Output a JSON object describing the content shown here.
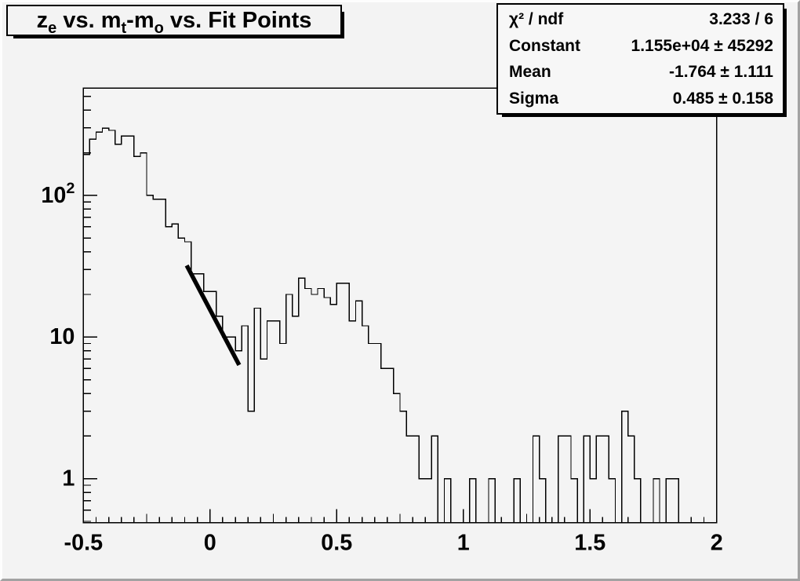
{
  "title": {
    "plain": "z_e vs. m_t-m_o vs. Fit Points",
    "parts": [
      {
        "t": "z"
      },
      {
        "sub": "e"
      },
      {
        "t": " vs. m"
      },
      {
        "sub": "t"
      },
      {
        "t": "-m"
      },
      {
        "sub": "o"
      },
      {
        "t": " vs. Fit Points"
      }
    ]
  },
  "stats": {
    "rows": [
      {
        "label": "χ² / ndf",
        "value": "3.233 / 6"
      },
      {
        "label": "Constant",
        "value": "1.155e+04 ± 45292"
      },
      {
        "label": "Mean",
        "value": "-1.764 ± 1.111"
      },
      {
        "label": "Sigma",
        "value": "0.485 ± 0.158"
      }
    ]
  },
  "chart_data": {
    "type": "bar",
    "subtype": "step-histogram",
    "title": "z_e vs. m_t-m_o vs. Fit Points",
    "xlabel": "",
    "ylabel": "",
    "grid": false,
    "legend_position": "top-right",
    "x_range": [
      -0.5,
      2
    ],
    "y_scale": "log",
    "y_range": [
      0.49,
      573
    ],
    "bin_start": -0.5,
    "bin_width": 0.025,
    "n_bins": 100,
    "values": [
      195,
      250,
      280,
      298,
      288,
      230,
      262,
      262,
      188,
      200,
      100,
      94,
      94,
      60,
      63,
      50,
      47,
      28,
      28,
      21,
      21,
      14,
      10,
      10,
      8,
      12,
      3,
      16,
      7,
      13,
      13,
      9,
      20,
      14,
      26,
      22,
      20,
      22,
      19,
      17,
      24,
      24,
      13,
      18,
      12,
      9,
      9,
      6,
      6,
      4,
      3,
      2,
      2,
      1,
      1,
      2,
      0,
      1,
      0,
      0,
      0,
      1,
      0,
      0,
      1,
      0,
      0,
      0,
      1,
      0,
      0,
      2,
      1,
      0,
      0,
      2,
      2,
      1,
      0,
      2,
      1,
      2,
      2,
      1,
      0,
      3,
      2,
      1,
      0,
      0,
      1,
      0,
      1,
      1,
      0,
      0,
      0,
      0,
      0,
      0
    ],
    "x_ticks": [
      {
        "v": -0.5,
        "label": "-0.5"
      },
      {
        "v": 0,
        "label": "0"
      },
      {
        "v": 0.5,
        "label": "0.5"
      },
      {
        "v": 1,
        "label": "1"
      },
      {
        "v": 1.5,
        "label": "1.5"
      },
      {
        "v": 2,
        "label": "2"
      }
    ],
    "x_minor_tick_step": 0.05,
    "y_ticks": [
      {
        "v": 1,
        "label": "1"
      },
      {
        "v": 10,
        "label": "10"
      },
      {
        "v": 100,
        "label": "10",
        "exp": "2"
      }
    ],
    "fit_line": {
      "x1": -0.092,
      "y1": 32,
      "x2": 0.115,
      "y2": 6.35
    },
    "fit_results": {
      "chi2_ndf": "3.233 / 6",
      "constant": "1.155e+04 ± 45292",
      "mean": "-1.764 ± 1.111",
      "sigma": "0.485 ± 0.158"
    }
  }
}
